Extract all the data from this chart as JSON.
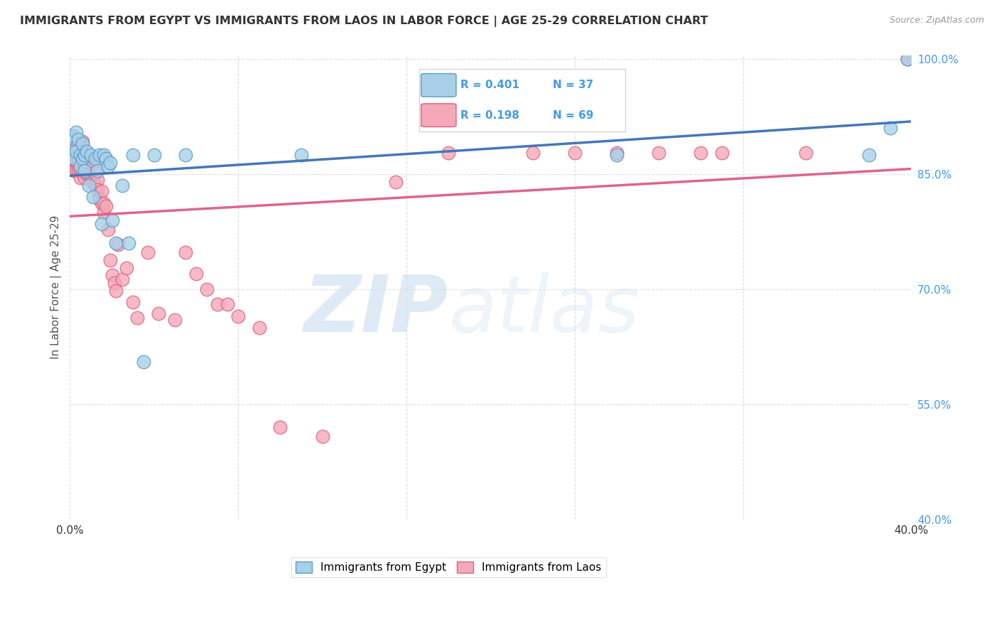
{
  "title": "IMMIGRANTS FROM EGYPT VS IMMIGRANTS FROM LAOS IN LABOR FORCE | AGE 25-29 CORRELATION CHART",
  "source": "Source: ZipAtlas.com",
  "ylabel": "In Labor Force | Age 25-29",
  "xlim": [
    0.0,
    0.4
  ],
  "ylim": [
    0.4,
    1.005
  ],
  "egypt_R": 0.401,
  "egypt_N": 37,
  "laos_R": 0.198,
  "laos_N": 69,
  "egypt_color": "#a8d0e8",
  "laos_color": "#f4a8b8",
  "egypt_edge_color": "#5a9ac8",
  "laos_edge_color": "#e06080",
  "egypt_line_color": "#4477bb",
  "laos_line_color": "#dd6688",
  "legend_label_egypt": "Immigrants from Egypt",
  "legend_label_laos": "Immigrants from Laos",
  "watermark_zip": "ZIP",
  "watermark_atlas": "atlas",
  "background_color": "#ffffff",
  "grid_color": "#dddddd",
  "title_color": "#333333",
  "source_color": "#999999",
  "ylabel_color": "#555555",
  "tick_color_x": "#333333",
  "tick_color_y": "#4499ee",
  "legend_R_N_color": "#4499ee",
  "egypt_points_x": [
    0.001,
    0.001,
    0.002,
    0.003,
    0.003,
    0.004,
    0.005,
    0.005,
    0.006,
    0.006,
    0.007,
    0.007,
    0.008,
    0.009,
    0.01,
    0.011,
    0.012,
    0.013,
    0.014,
    0.015,
    0.016,
    0.017,
    0.018,
    0.019,
    0.02,
    0.022,
    0.025,
    0.028,
    0.03,
    0.035,
    0.04,
    0.055,
    0.11,
    0.26,
    0.38,
    0.39,
    0.398
  ],
  "egypt_points_y": [
    0.9,
    0.88,
    0.87,
    0.905,
    0.88,
    0.895,
    0.875,
    0.86,
    0.89,
    0.87,
    0.875,
    0.855,
    0.88,
    0.835,
    0.875,
    0.82,
    0.87,
    0.855,
    0.875,
    0.785,
    0.875,
    0.87,
    0.86,
    0.865,
    0.79,
    0.76,
    0.835,
    0.76,
    0.875,
    0.605,
    0.875,
    0.875,
    0.875,
    0.875,
    0.875,
    0.91,
    1.0
  ],
  "laos_points_x": [
    0.001,
    0.001,
    0.002,
    0.002,
    0.003,
    0.003,
    0.003,
    0.004,
    0.004,
    0.004,
    0.005,
    0.005,
    0.005,
    0.006,
    0.006,
    0.006,
    0.007,
    0.007,
    0.007,
    0.008,
    0.008,
    0.009,
    0.009,
    0.01,
    0.01,
    0.011,
    0.011,
    0.012,
    0.012,
    0.013,
    0.013,
    0.014,
    0.015,
    0.015,
    0.016,
    0.016,
    0.017,
    0.018,
    0.019,
    0.02,
    0.021,
    0.022,
    0.023,
    0.025,
    0.027,
    0.03,
    0.032,
    0.037,
    0.042,
    0.05,
    0.055,
    0.06,
    0.065,
    0.07,
    0.075,
    0.08,
    0.09,
    0.1,
    0.12,
    0.155,
    0.18,
    0.22,
    0.24,
    0.26,
    0.28,
    0.3,
    0.31,
    0.35,
    0.398
  ],
  "laos_points_y": [
    0.88,
    0.86,
    0.87,
    0.855,
    0.855,
    0.87,
    0.885,
    0.86,
    0.87,
    0.855,
    0.855,
    0.86,
    0.845,
    0.855,
    0.878,
    0.893,
    0.845,
    0.87,
    0.858,
    0.85,
    0.865,
    0.85,
    0.873,
    0.845,
    0.85,
    0.84,
    0.863,
    0.835,
    0.852,
    0.843,
    0.83,
    0.818,
    0.828,
    0.812,
    0.8,
    0.812,
    0.808,
    0.778,
    0.738,
    0.718,
    0.708,
    0.698,
    0.758,
    0.713,
    0.728,
    0.683,
    0.663,
    0.748,
    0.668,
    0.66,
    0.748,
    0.72,
    0.7,
    0.68,
    0.68,
    0.665,
    0.65,
    0.52,
    0.508,
    0.84,
    0.878,
    0.878,
    0.878,
    0.878,
    0.878,
    0.878,
    0.878,
    0.878,
    1.0
  ]
}
